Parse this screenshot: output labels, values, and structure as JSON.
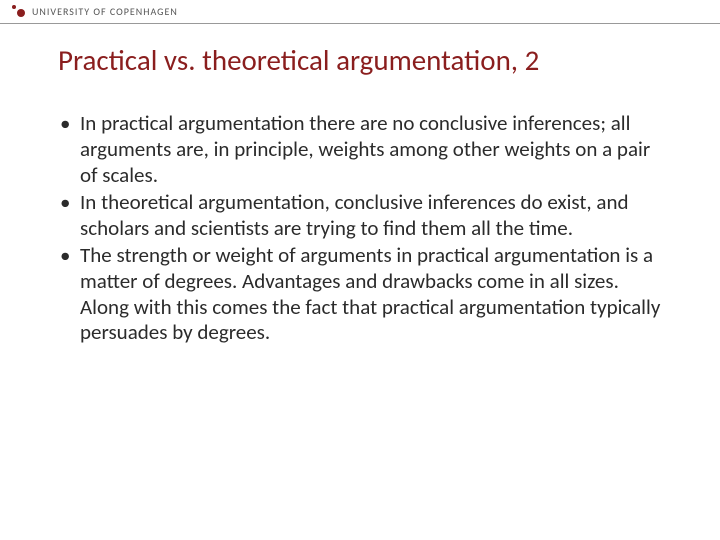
{
  "header": {
    "institution": "UNIVERSITY OF COPENHAGEN",
    "logo_color": "#8a1e1e",
    "divider_color": "#999999"
  },
  "slide": {
    "title": "Practical vs. theoretical argumentation, 2",
    "title_color": "#8a1e1e",
    "title_fontsize": 29,
    "body_fontsize": 21,
    "body_color": "#2b2b2b",
    "background_color": "#ffffff",
    "bullets": [
      "In practical argumentation there are no conclusive inferences; all arguments are, in principle, weights among other weights on a pair of scales.",
      "In theoretical argumentation, conclusive inferences do exist, and scholars and scientists are trying to find them all the time.",
      "The strength or weight of arguments in practical argumentation is a matter of degrees. Advantages and drawbacks come in all sizes. Along with this comes the fact that practical argumentation typically persuades by degrees."
    ]
  }
}
